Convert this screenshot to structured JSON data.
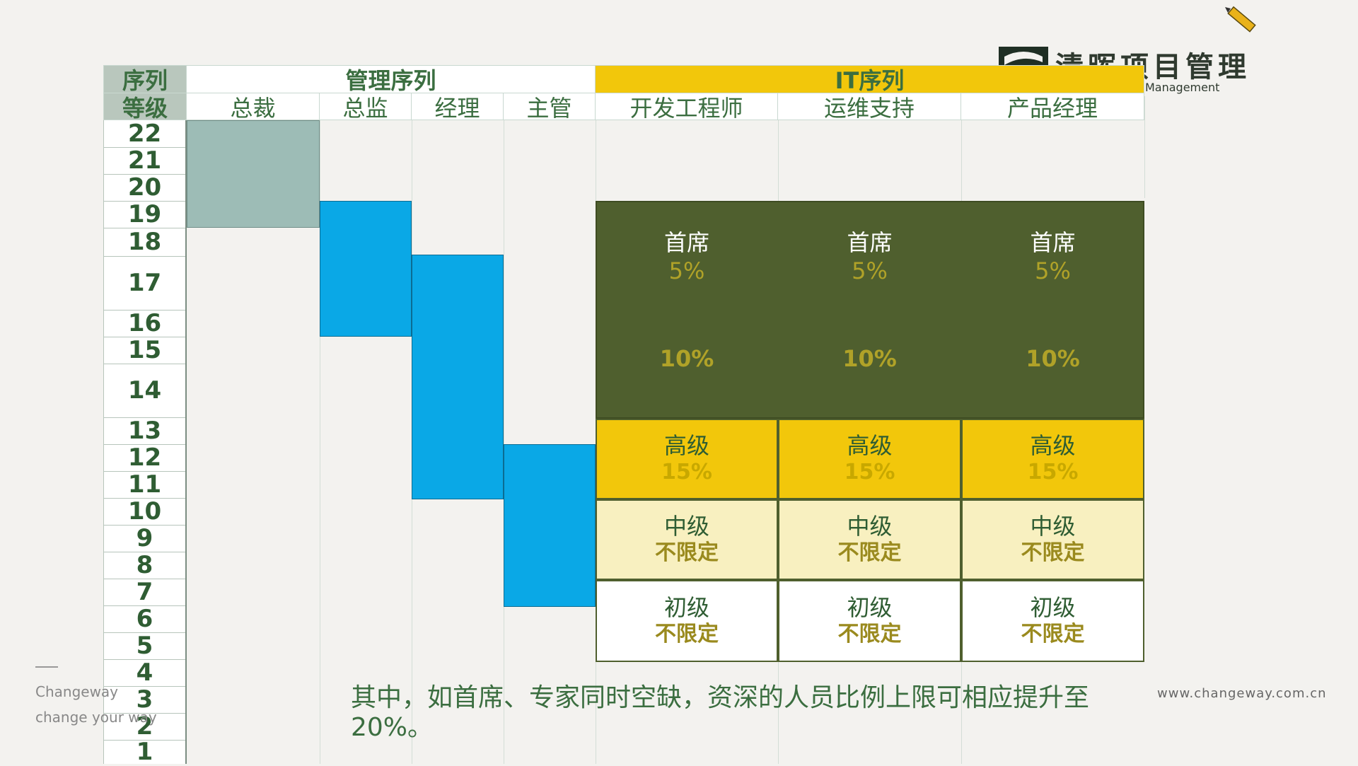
{
  "header": {
    "sequence_label": "序列",
    "grade_label": "等级",
    "management_title": "管理序列",
    "it_title": "IT序列",
    "management_roles": [
      "总裁",
      "总监",
      "经理",
      "主管"
    ],
    "it_roles": [
      "开发工程师",
      "运维支持",
      "产品经理"
    ]
  },
  "grades": [
    "22",
    "21",
    "20",
    "19",
    "18",
    "17",
    "16",
    "15",
    "14",
    "13",
    "12",
    "11",
    "10",
    "9",
    "8",
    "7",
    "6",
    "5",
    "4",
    "3",
    "2",
    "1"
  ],
  "it_levels": {
    "chief": {
      "title": "首席",
      "pct_top": "5%",
      "pct_bottom": "10%"
    },
    "senior": {
      "title": "高级",
      "value": "15%"
    },
    "mid": {
      "title": "中级",
      "value": "不限定"
    },
    "junior": {
      "title": "初级",
      "value": "不限定"
    }
  },
  "note": "其中，如首席、专家同时空缺，资深的人员比例上限可相应提升至20%。",
  "logo": {
    "title": "清晖项目管理",
    "subtitle": "Qinghui Project Management"
  },
  "footer": {
    "brand1": "Changeway",
    "brand2": "change your way",
    "site": "www.changeway.com.cn"
  },
  "colors": {
    "chief": "#4f5f2e",
    "senior": "#f2c70b",
    "mid": "#f8f0c0",
    "management_block": "#0aa8e6",
    "president_block": "#9dbcb6"
  }
}
